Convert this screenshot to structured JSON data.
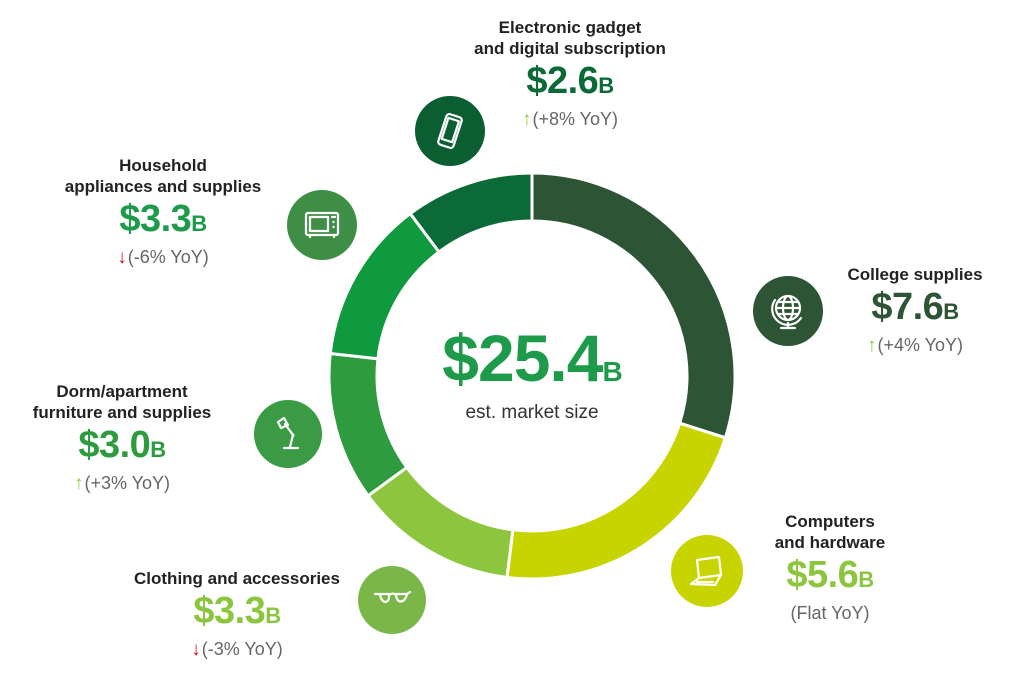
{
  "chart_data": {
    "type": "pie",
    "total": {
      "value": "$25.4",
      "unit": "B",
      "label": "est. market size"
    },
    "slices": [
      {
        "title_lines": [
          "College supplies"
        ],
        "value": 7.6,
        "display": "$7.6",
        "unit": "B",
        "yoy": "(+4% YoY)",
        "trend": "up",
        "color": "#2d5535",
        "text_color": "#2d5535",
        "icon_color": "#2d5535",
        "icon": "globe-icon"
      },
      {
        "title_lines": [
          "Computers",
          "and hardware"
        ],
        "value": 5.6,
        "display": "$5.6",
        "unit": "B",
        "yoy": "(Flat YoY)",
        "trend": "flat",
        "color": "#c8d400",
        "text_color": "#8cc63f",
        "icon_color": "#c8d400",
        "icon": "laptop-icon"
      },
      {
        "title_lines": [
          "Clothing and accessories"
        ],
        "value": 3.3,
        "display": "$3.3",
        "unit": "B",
        "yoy": "(-3% YoY)",
        "trend": "down",
        "color": "#8cc63f",
        "text_color": "#8cc63f",
        "icon_color": "#7ab648",
        "icon": "glasses-icon"
      },
      {
        "title_lines": [
          "Dorm/apartment",
          "furniture and supplies"
        ],
        "value": 3.0,
        "display": "$3.0",
        "unit": "B",
        "yoy": "(+3% YoY)",
        "trend": "up",
        "color": "#2e9c3e",
        "text_color": "#2e9c3e",
        "icon_color": "#3a9b44",
        "icon": "lamp-icon"
      },
      {
        "title_lines": [
          "Household",
          "appliances and supplies"
        ],
        "value": 3.3,
        "display": "$3.3",
        "unit": "B",
        "yoy": "(-6% YoY)",
        "trend": "down",
        "color": "#0f9a3f",
        "text_color": "#1e9a4b",
        "icon_color": "#3e8f45",
        "icon": "microwave-icon"
      },
      {
        "title_lines": [
          "Electronic gadget",
          "and digital subscription"
        ],
        "value": 2.6,
        "display": "$2.6",
        "unit": "B",
        "yoy": "(+8% YoY)",
        "trend": "up",
        "color": "#0b6a37",
        "text_color": "#0b6a37",
        "icon_color": "#0b5e32",
        "icon": "smartphone-icon"
      }
    ],
    "arrow_colors": {
      "up": "#8cc63f",
      "down": "#c8102e"
    }
  }
}
